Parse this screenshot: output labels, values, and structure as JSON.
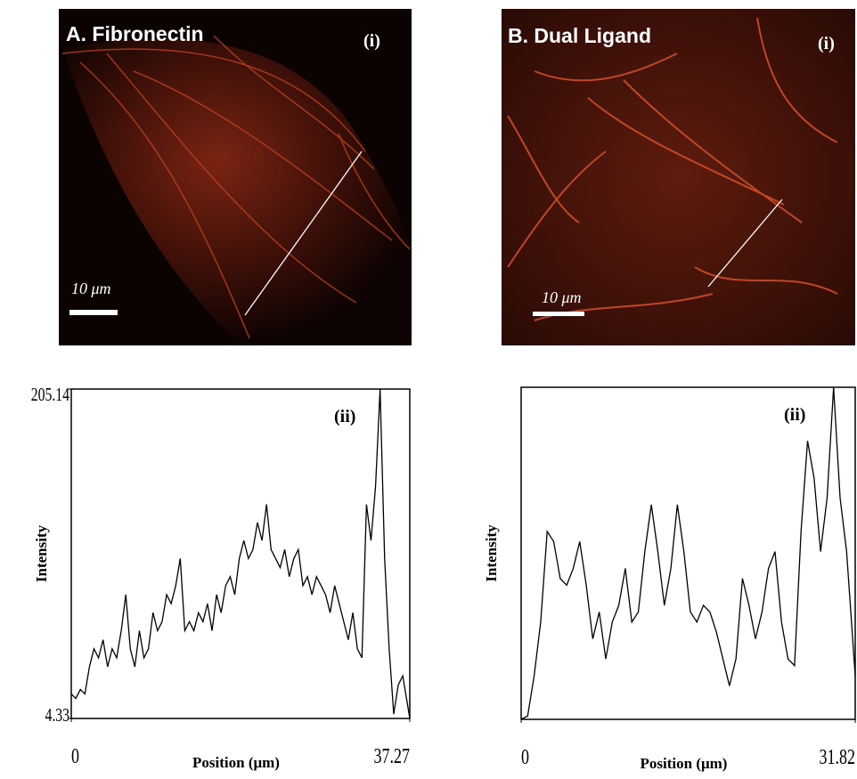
{
  "images": [
    {
      "title": "A. Fibronectin",
      "marker": "(i)",
      "scale_label": "10 μm"
    },
    {
      "title": "B. Dual Ligand",
      "marker": "(i)",
      "scale_label": "10 μm"
    }
  ],
  "chart_data": [
    {
      "type": "line",
      "annotation": "(ii)",
      "xlabel": "Position (μm)",
      "ylabel": "Intensity",
      "color": "#000000",
      "xlim": [
        0,
        37.27
      ],
      "xticks": [
        0,
        37.27
      ],
      "ylim": [
        4.33,
        205.14
      ],
      "yticks": [
        4.33,
        205.14
      ],
      "x": [
        0,
        0.5,
        1,
        1.5,
        2,
        2.5,
        3,
        3.5,
        4,
        4.5,
        5,
        5.5,
        6,
        6.5,
        7,
        7.5,
        8,
        8.5,
        9,
        9.5,
        10,
        10.5,
        11,
        11.5,
        12,
        12.5,
        13,
        13.5,
        14,
        14.5,
        15,
        15.5,
        16,
        16.5,
        17,
        17.5,
        18,
        18.5,
        19,
        19.5,
        20,
        20.5,
        21,
        21.5,
        22,
        22.5,
        23,
        23.5,
        24,
        24.5,
        25,
        25.5,
        26,
        26.5,
        27,
        27.5,
        28,
        28.5,
        29,
        29.5,
        30,
        30.5,
        31,
        31.5,
        32,
        32.5,
        33,
        33.5,
        34,
        34.5,
        35,
        35.5,
        36,
        36.5,
        37.27
      ],
      "values": [
        19.3,
        16.5,
        22,
        19.3,
        35.8,
        46.8,
        41.3,
        52.3,
        35.8,
        46.8,
        41.3,
        57.8,
        79.8,
        46.8,
        35.8,
        57.8,
        41.3,
        46.8,
        68.8,
        57.8,
        63.3,
        79.8,
        74.3,
        85.3,
        101.8,
        57.8,
        63.3,
        57.8,
        68.8,
        63.3,
        74.3,
        57.8,
        79.8,
        68.8,
        85.3,
        90.8,
        79.8,
        101.8,
        112.8,
        101.8,
        107.3,
        123.8,
        112.8,
        134.8,
        107.3,
        101.8,
        96.3,
        107.3,
        90.8,
        101.8,
        107.3,
        85.3,
        90.8,
        79.8,
        90.8,
        85.3,
        79.8,
        68.8,
        85.3,
        74.3,
        63.3,
        52.3,
        68.8,
        46.8,
        41.3,
        134.8,
        112.8,
        145.8,
        205.14,
        101.8,
        46.8,
        7,
        24.8,
        30.3,
        4.33
      ]
    },
    {
      "type": "line",
      "annotation": "(ii)",
      "xlabel": "Position (μm)",
      "ylabel": "Intensity",
      "color": "#000000",
      "xlim": [
        0,
        31.82
      ],
      "xticks": [
        0,
        31.82
      ],
      "x": [
        0,
        0.62,
        1.24,
        1.86,
        2.48,
        3.1,
        3.72,
        4.34,
        4.96,
        5.58,
        6.2,
        6.82,
        7.44,
        8.06,
        8.68,
        9.3,
        9.92,
        10.54,
        11.16,
        11.78,
        12.4,
        13.02,
        13.64,
        14.26,
        14.88,
        15.5,
        16.12,
        16.74,
        17.36,
        17.98,
        18.6,
        19.22,
        19.84,
        20.46,
        21.08,
        21.7,
        22.32,
        22.94,
        23.56,
        24.18,
        24.8,
        25.42,
        26.04,
        26.66,
        27.28,
        27.9,
        28.52,
        29.14,
        29.76,
        30.38,
        31,
        31.82
      ],
      "values": [
        0,
        1,
        13,
        29,
        56,
        53,
        42,
        40,
        45,
        53,
        40,
        24,
        32,
        18,
        29,
        34,
        45,
        29,
        32,
        50,
        64,
        50,
        34,
        45,
        64,
        50,
        32,
        29,
        34,
        32,
        26,
        18,
        10,
        18,
        42,
        34,
        24,
        32,
        45,
        50,
        29,
        18,
        16,
        56,
        83,
        72,
        50,
        66,
        99,
        66,
        50,
        13
      ]
    }
  ]
}
